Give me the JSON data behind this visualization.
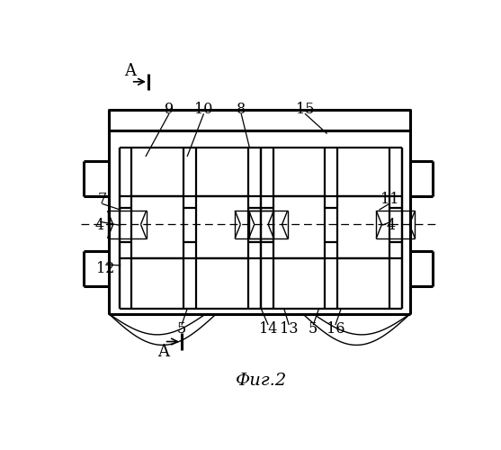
{
  "bg": "#ffffff",
  "lw_main": 1.6,
  "lw_thin": 1.0,
  "lw_thick": 2.2,
  "fig_caption": "Фиг.2",
  "labels": [
    "9",
    "10",
    "8",
    "15",
    "7",
    "11",
    "4",
    "4",
    "12",
    "5",
    "14",
    "13",
    "5",
    "16"
  ],
  "section_letter": "A"
}
